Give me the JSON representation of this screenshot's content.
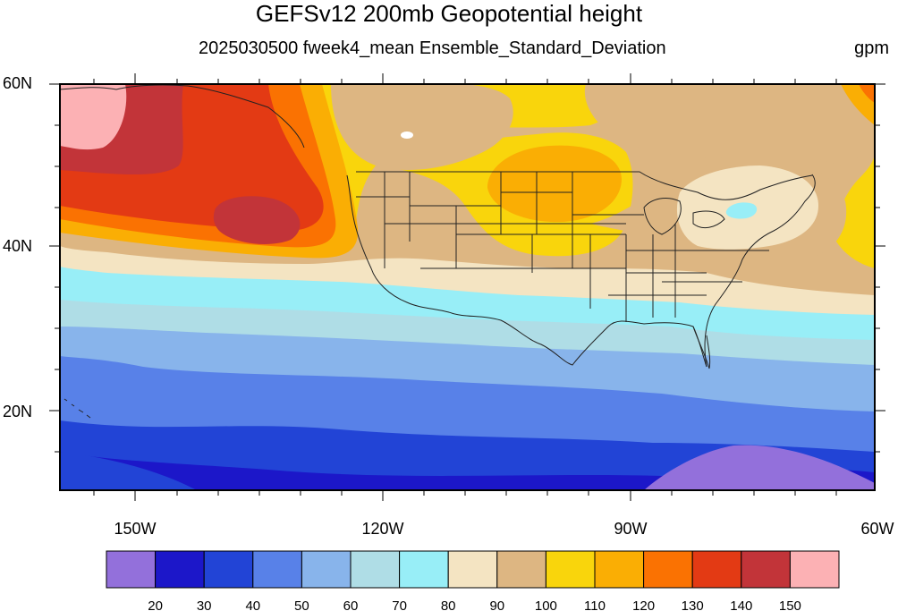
{
  "title": "GEFSv12 200mb Geopotential height",
  "subtitle": "2025030500 fweek4_mean Ensemble_Standard_Deviation",
  "units": "gpm",
  "lat_labels": [
    "60N",
    "40N",
    "20N"
  ],
  "lon_labels": [
    "150W",
    "120W",
    "90W",
    "60W"
  ],
  "colorbar": {
    "colors": [
      "#9370DB",
      "#1C17C9",
      "#2244D6",
      "#5881E8",
      "#88B4EB",
      "#AFDDE6",
      "#98EEF7",
      "#F4E4C2",
      "#DDB682",
      "#F9D50C",
      "#FAAE04",
      "#FA7202",
      "#E33A14",
      "#C23439",
      "#FCB1B4"
    ],
    "labels": [
      "20",
      "30",
      "40",
      "50",
      "60",
      "70",
      "80",
      "90",
      "100",
      "110",
      "120",
      "130",
      "140",
      "150"
    ]
  }
}
